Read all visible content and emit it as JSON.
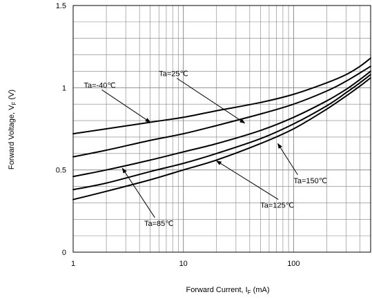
{
  "chart_data": {
    "type": "line",
    "x_scale": "log",
    "xlim": [
      1,
      500
    ],
    "ylim": [
      0,
      1.5
    ],
    "grid": true,
    "xlabel_main": "Forward Current, I",
    "xlabel_sub": "F",
    "xlabel_unit": " (mA)",
    "ylabel_main": "Forward Voltage, V",
    "ylabel_sub": "F",
    "ylabel_unit": " (V)",
    "x_ticks": [
      {
        "value": 1,
        "label": "1"
      },
      {
        "value": 10,
        "label": "10"
      },
      {
        "value": 100,
        "label": "100"
      }
    ],
    "y_ticks": [
      {
        "value": 0,
        "label": "0"
      },
      {
        "value": 0.5,
        "label": "0.5"
      },
      {
        "value": 1,
        "label": "1"
      },
      {
        "value": 1.5,
        "label": "1.5"
      }
    ],
    "series": [
      {
        "name": "Ta=-40℃",
        "x": [
          1,
          2,
          5,
          10,
          20,
          50,
          100,
          200,
          300,
          400,
          500
        ],
        "y": [
          0.72,
          0.75,
          0.79,
          0.82,
          0.86,
          0.91,
          0.96,
          1.03,
          1.08,
          1.13,
          1.18
        ]
      },
      {
        "name": "Ta=25℃",
        "x": [
          1,
          2,
          5,
          10,
          20,
          50,
          100,
          200,
          300,
          400,
          500
        ],
        "y": [
          0.58,
          0.62,
          0.68,
          0.72,
          0.77,
          0.84,
          0.9,
          0.98,
          1.04,
          1.09,
          1.13
        ]
      },
      {
        "name": "Ta=85℃",
        "x": [
          1,
          2,
          5,
          10,
          20,
          50,
          100,
          200,
          300,
          400,
          500
        ],
        "y": [
          0.46,
          0.5,
          0.56,
          0.61,
          0.66,
          0.74,
          0.82,
          0.92,
          0.99,
          1.05,
          1.1
        ]
      },
      {
        "name": "Ta=125℃",
        "x": [
          1,
          2,
          5,
          10,
          20,
          50,
          100,
          200,
          300,
          400,
          500
        ],
        "y": [
          0.38,
          0.42,
          0.49,
          0.54,
          0.6,
          0.69,
          0.78,
          0.89,
          0.97,
          1.03,
          1.08
        ]
      },
      {
        "name": "Ta=150℃",
        "x": [
          1,
          2,
          5,
          10,
          20,
          50,
          100,
          200,
          300,
          400,
          500
        ],
        "y": [
          0.32,
          0.37,
          0.44,
          0.5,
          0.56,
          0.66,
          0.75,
          0.87,
          0.95,
          1.01,
          1.06
        ]
      }
    ],
    "annotations": [
      {
        "text": "Ta=-40℃",
        "series": 0
      },
      {
        "text": "Ta=25℃",
        "series": 1
      },
      {
        "text": "Ta=85℃",
        "series": 2
      },
      {
        "text": "Ta=125℃",
        "series": 3
      },
      {
        "text": "Ta=150℃",
        "series": 4
      }
    ],
    "line_color": "#000000",
    "grid_color": "#7f7f7f"
  }
}
